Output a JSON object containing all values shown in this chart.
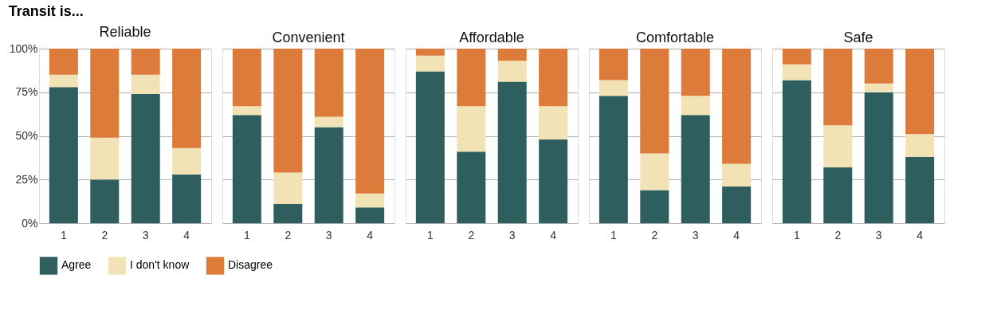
{
  "chart_data": [
    {
      "type": "bar",
      "title": "Reliable",
      "annotations": [
        "Transit is..."
      ],
      "categories": [
        "1",
        "2",
        "3",
        "4"
      ],
      "stacked": true,
      "ylim": [
        0,
        100
      ],
      "yticks": [
        {
          "value": 0,
          "label": "0%"
        },
        {
          "value": 25,
          "label": "25%"
        },
        {
          "value": 50,
          "label": "50%"
        },
        {
          "value": 75,
          "label": "75%"
        },
        {
          "value": 100,
          "label": "100%"
        }
      ],
      "grid": "y",
      "legend": "bottom",
      "series": [
        {
          "name": "Agree",
          "color": "#2e5e5e",
          "values": [
            78,
            25,
            74,
            28
          ]
        },
        {
          "name": "I don't know",
          "color": "#f2e3b6",
          "values": [
            7,
            24,
            11,
            15
          ]
        },
        {
          "name": "Disagree",
          "color": "#dc7b3a",
          "values": [
            15,
            51,
            15,
            57
          ]
        }
      ]
    },
    {
      "type": "bar",
      "title": "Convenient",
      "categories": [
        "1",
        "2",
        "3",
        "4"
      ],
      "stacked": true,
      "ylim": [
        0,
        100
      ],
      "yticks": [
        {
          "value": 0,
          "label": null
        },
        {
          "value": 25,
          "label": null
        },
        {
          "value": 50,
          "label": null
        },
        {
          "value": 75,
          "label": null
        },
        {
          "value": 100,
          "label": null
        }
      ],
      "grid": "y",
      "legend": "bottom",
      "tick_labels": "x",
      "series": [
        {
          "name": "Agree",
          "color": "#2e5e5e",
          "values": [
            62,
            11,
            55,
            9
          ]
        },
        {
          "name": "I don't know",
          "color": "#f2e3b6",
          "values": [
            5,
            18,
            6,
            8
          ]
        },
        {
          "name": "Disagree",
          "color": "#dc7b3a",
          "values": [
            33,
            71,
            39,
            83
          ]
        }
      ]
    },
    {
      "type": "bar",
      "title": "Affordable",
      "categories": [
        "1",
        "2",
        "3",
        "4"
      ],
      "stacked": true,
      "ylim": [
        0,
        100
      ],
      "yticks": [
        {
          "value": 0,
          "label": null
        },
        {
          "value": 25,
          "label": null
        },
        {
          "value": 50,
          "label": null
        },
        {
          "value": 75,
          "label": null
        },
        {
          "value": 100,
          "label": null
        }
      ],
      "grid": "y",
      "legend": "bottom",
      "tick_labels": "x",
      "series": [
        {
          "name": "Agree",
          "color": "#2e5e5e",
          "values": [
            87,
            41,
            81,
            48
          ]
        },
        {
          "name": "I don't know",
          "color": "#f2e3b6",
          "values": [
            9,
            26,
            12,
            19
          ]
        },
        {
          "name": "Disagree",
          "color": "#dc7b3a",
          "values": [
            4,
            33,
            7,
            33
          ]
        }
      ]
    },
    {
      "type": "bar",
      "title": "Comfortable",
      "categories": [
        "1",
        "2",
        "3",
        "4"
      ],
      "stacked": true,
      "ylim": [
        0,
        100
      ],
      "yticks": [
        {
          "value": 0,
          "label": null
        },
        {
          "value": 25,
          "label": null
        },
        {
          "value": 50,
          "label": null
        },
        {
          "value": 75,
          "label": null
        },
        {
          "value": 100,
          "label": null
        }
      ],
      "grid": "y",
      "legend": "bottom",
      "tick_labels": "x",
      "series": [
        {
          "name": "Agree",
          "color": "#2e5e5e",
          "values": [
            73,
            19,
            62,
            21
          ]
        },
        {
          "name": "I don't know",
          "color": "#f2e3b6",
          "values": [
            9,
            21,
            11,
            13
          ]
        },
        {
          "name": "Disagree",
          "color": "#dc7b3a",
          "values": [
            18,
            60,
            27,
            66
          ]
        }
      ]
    },
    {
      "type": "bar",
      "title": "Safe",
      "categories": [
        "1",
        "2",
        "3",
        "4"
      ],
      "stacked": true,
      "ylim": [
        0,
        100
      ],
      "yticks": [
        {
          "value": 0,
          "label": null
        },
        {
          "value": 25,
          "label": null
        },
        {
          "value": 50,
          "label": null
        },
        {
          "value": 75,
          "label": null
        },
        {
          "value": 100,
          "label": null
        }
      ],
      "grid": "y",
      "legend": "bottom",
      "tick_labels": "x",
      "series": [
        {
          "name": "Agree",
          "color": "#2e5e5e",
          "values": [
            82,
            32,
            75,
            38
          ]
        },
        {
          "name": "I don't know",
          "color": "#f2e3b6",
          "values": [
            9,
            24,
            5,
            13
          ]
        },
        {
          "name": "Disagree",
          "color": "#dc7b3a",
          "values": [
            9,
            44,
            20,
            49
          ]
        }
      ]
    }
  ]
}
